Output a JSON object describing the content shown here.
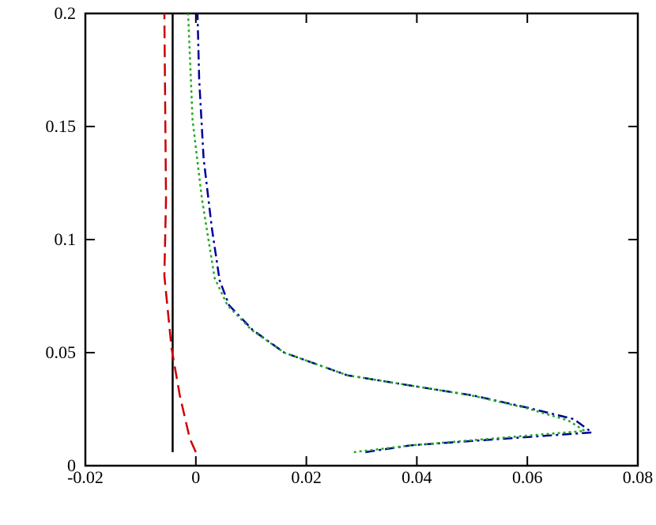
{
  "chart_data": {
    "type": "line",
    "xlim": [
      -0.02,
      0.08
    ],
    "ylim": [
      0,
      0.2
    ],
    "xticks": [
      -0.02,
      0,
      0.02,
      0.04,
      0.06,
      0.08
    ],
    "yticks": [
      0,
      0.05,
      0.1,
      0.15,
      0.2
    ],
    "grid": false,
    "series": [
      {
        "color": "#000000",
        "dash": "solid",
        "x": [
          -0.0042,
          -0.0042
        ],
        "values": [
          0.006,
          0.2
        ]
      },
      {
        "color": "#cc0000",
        "dash": "dashed",
        "x": [
          0.0,
          -0.0011,
          -0.0029,
          -0.0044,
          -0.0057,
          -0.0054,
          -0.0057
        ],
        "values": [
          0.006,
          0.012,
          0.031,
          0.052,
          0.084,
          0.118,
          0.2
        ]
      },
      {
        "color": "#000099",
        "dash": "dashdot",
        "x": [
          0.0307,
          0.0389,
          0.0717,
          0.0684,
          0.0603,
          0.0503,
          0.04,
          0.0274,
          0.016,
          0.0103,
          0.006,
          0.0043,
          0.0029,
          0.0014,
          0.0006,
          0.0003
        ],
        "values": [
          0.006,
          0.009,
          0.0147,
          0.0206,
          0.0255,
          0.031,
          0.035,
          0.04,
          0.05,
          0.06,
          0.071,
          0.082,
          0.105,
          0.136,
          0.171,
          0.2
        ]
      },
      {
        "color": "#22aa22",
        "dash": "dotted",
        "x": [
          0.0286,
          0.0389,
          0.0704,
          0.0674,
          0.0598,
          0.05,
          0.04,
          0.0274,
          0.016,
          0.0101,
          0.0057,
          0.0034,
          0.0011,
          -0.0006,
          -0.0014
        ],
        "values": [
          0.006,
          0.009,
          0.0154,
          0.02,
          0.0255,
          0.031,
          0.035,
          0.04,
          0.05,
          0.06,
          0.071,
          0.083,
          0.118,
          0.153,
          0.2
        ]
      }
    ]
  }
}
